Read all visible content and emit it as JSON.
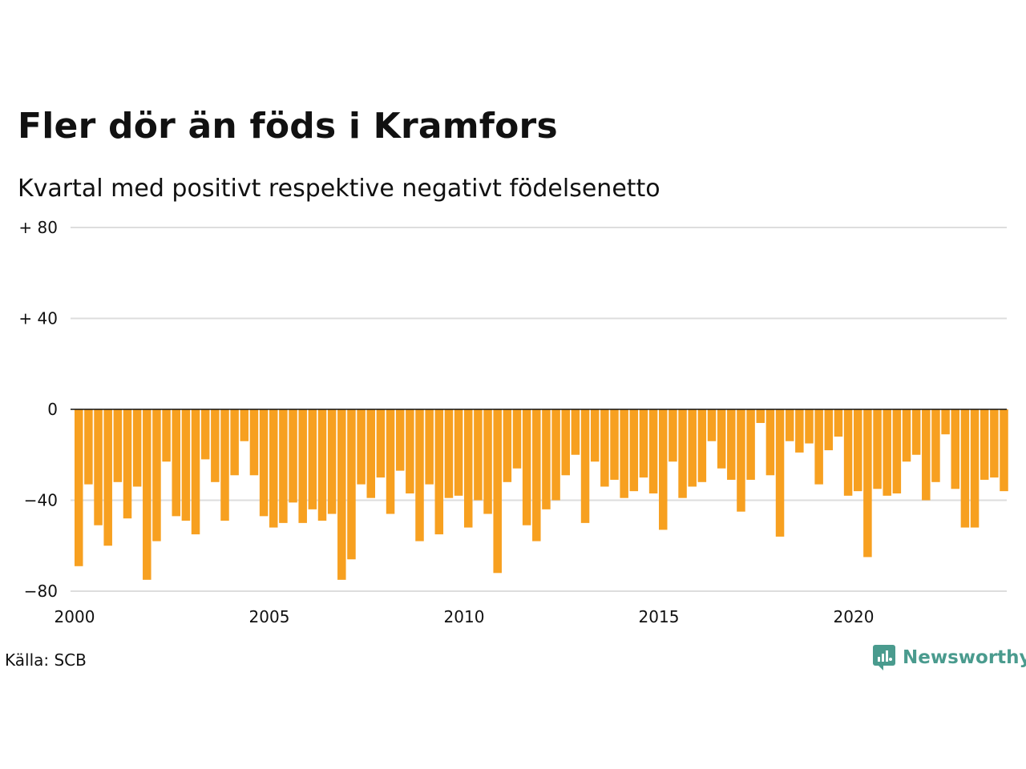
{
  "title": "Fler dör än föds i Kramfors",
  "subtitle": "Kvartal med positivt respektive negativt födelsenetto",
  "source": "Källa: SCB",
  "brand": "Newsworthy",
  "colors": {
    "bar": "#f7a020",
    "grid": "#dddddd",
    "zero": "#111111",
    "brand": "#4a9b8e"
  },
  "chart_data": {
    "type": "bar",
    "title": "Fler dör än föds i Kramfors",
    "subtitle": "Kvartal med positivt respektive negativt födelsenetto",
    "xlabel": "",
    "ylabel": "",
    "ylim": [
      -80,
      80
    ],
    "yticks": [
      {
        "value": 80,
        "label": "+ 80"
      },
      {
        "value": 40,
        "label": "+ 40"
      },
      {
        "value": 0,
        "label": "0"
      },
      {
        "value": -40,
        "label": "−40"
      },
      {
        "value": -80,
        "label": "−80"
      }
    ],
    "xticks": [
      {
        "value": 2000,
        "label": "2000"
      },
      {
        "value": 2005,
        "label": "2005"
      },
      {
        "value": 2010,
        "label": "2010"
      },
      {
        "value": 2015,
        "label": "2015"
      },
      {
        "value": 2020,
        "label": "2020"
      }
    ],
    "x_start": "2000-Q1",
    "grid": true,
    "values": [
      -69,
      -33,
      -51,
      -60,
      -32,
      -48,
      -34,
      -75,
      -58,
      -23,
      -47,
      -49,
      -55,
      -22,
      -32,
      -49,
      -29,
      -14,
      -29,
      -47,
      -52,
      -50,
      -41,
      -50,
      -44,
      -49,
      -46,
      -75,
      -66,
      -33,
      -39,
      -30,
      -46,
      -27,
      -37,
      -58,
      -33,
      -55,
      -39,
      -38,
      -52,
      -40,
      -46,
      -72,
      -32,
      -26,
      -51,
      -58,
      -44,
      -40,
      -29,
      -20,
      -50,
      -23,
      -34,
      -31,
      -39,
      -36,
      -30,
      -37,
      -53,
      -23,
      -39,
      -34,
      -32,
      -14,
      -26,
      -31,
      -45,
      -31,
      -6,
      -29,
      -56,
      -14,
      -19,
      -15,
      -33,
      -18,
      -12,
      -38,
      -36,
      -65,
      -35,
      -38,
      -37,
      -23,
      -20,
      -40,
      -32,
      -11,
      -35,
      -52,
      -52,
      -31,
      -30,
      -36
    ]
  }
}
